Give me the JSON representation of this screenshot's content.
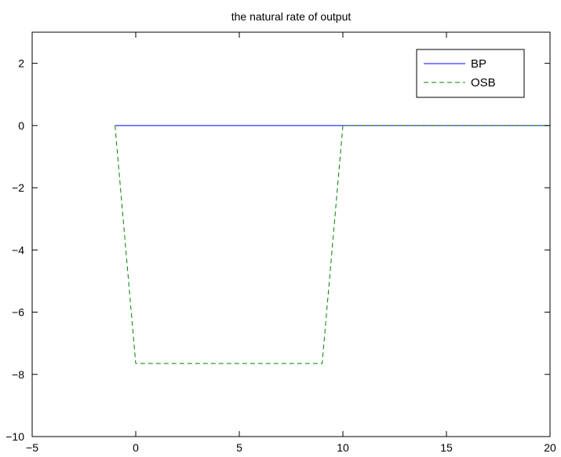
{
  "chart_data": {
    "type": "line",
    "title": "the natural rate of output",
    "xlabel": "",
    "ylabel": "",
    "xlim": [
      -5,
      20
    ],
    "ylim": [
      -10,
      3
    ],
    "xticks": [
      -5,
      0,
      5,
      10,
      15,
      20
    ],
    "yticks": [
      -10,
      -8,
      -6,
      -4,
      -2,
      0,
      2
    ],
    "xtick_labels": [
      "−5",
      "0",
      "5",
      "10",
      "15",
      "20"
    ],
    "ytick_labels": [
      "−10",
      "−8",
      "−6",
      "−4",
      "−2",
      "0",
      "2"
    ],
    "grid": false,
    "legend_position": "top-right",
    "series": [
      {
        "name": "BP",
        "color": "#0000ff",
        "line_style": "solid",
        "x": [
          -1,
          0,
          1,
          2,
          3,
          4,
          5,
          6,
          7,
          8,
          9,
          10,
          11,
          12,
          13,
          14,
          15,
          16,
          17,
          18,
          19,
          20
        ],
        "y": [
          0,
          0,
          0,
          0,
          0,
          0,
          0,
          0,
          0,
          0,
          0,
          0,
          0,
          0,
          0,
          0,
          0,
          0,
          0,
          0,
          0,
          0
        ]
      },
      {
        "name": "OSB",
        "color": "#008000",
        "line_style": "dashed",
        "x": [
          -1,
          0,
          1,
          2,
          3,
          4,
          5,
          6,
          7,
          8,
          9,
          10,
          11,
          12,
          13,
          14,
          15,
          16,
          17,
          18,
          19,
          20
        ],
        "y": [
          0,
          -7.65,
          -7.65,
          -7.65,
          -7.65,
          -7.65,
          -7.65,
          -7.65,
          -7.65,
          -7.65,
          -7.65,
          0,
          0,
          0,
          0,
          0,
          0,
          0,
          0,
          0,
          0,
          0
        ]
      }
    ]
  }
}
